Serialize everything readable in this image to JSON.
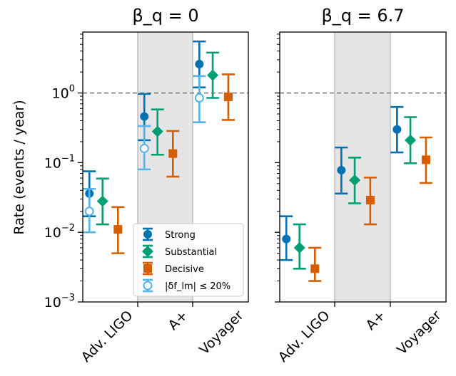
{
  "chart_data": [
    {
      "type": "errorbar",
      "title": "β_q = 0",
      "ylabel": "Rate (events / year)",
      "yscale": "log",
      "ylim": [
        0.001,
        7.5
      ],
      "yticks": [
        {
          "value": 0.001,
          "base": "10",
          "exp": "−3"
        },
        {
          "value": 0.01,
          "base": "10",
          "exp": "−2"
        },
        {
          "value": 0.1,
          "base": "10",
          "exp": "−1"
        },
        {
          "value": 1,
          "base": "10",
          "exp": "0"
        }
      ],
      "reference_line": 1,
      "categories": [
        "Adv. LIGO",
        "A+",
        "Voyager"
      ],
      "shaded_category": "A+",
      "series": [
        {
          "name": "Strong",
          "marker": "circle",
          "color": "#0072b2",
          "offset": -0.38,
          "points": [
            {
              "y": 0.036,
              "low": 0.017,
              "high": 0.075
            },
            {
              "y": 0.46,
              "low": 0.21,
              "high": 0.97
            },
            {
              "y": 2.6,
              "low": 1.2,
              "high": 5.5
            }
          ]
        },
        {
          "name": "Substantial",
          "marker": "diamond",
          "color": "#009e73",
          "offset": -0.14,
          "points": [
            {
              "y": 0.028,
              "low": 0.013,
              "high": 0.059
            },
            {
              "y": 0.28,
              "low": 0.13,
              "high": 0.58
            },
            {
              "y": 1.8,
              "low": 0.85,
              "high": 3.8
            }
          ]
        },
        {
          "name": "Decisive",
          "marker": "square",
          "color": "#d55e00",
          "offset": 0.14,
          "points": [
            {
              "y": 0.011,
              "low": 0.005,
              "high": 0.023
            },
            {
              "y": 0.135,
              "low": 0.063,
              "high": 0.285
            },
            {
              "y": 0.88,
              "low": 0.41,
              "high": 1.85
            }
          ]
        },
        {
          "name": "|δf_lm| ≤ 20%",
          "marker": "open-circle",
          "color": "#56b4e9",
          "offset": -0.38,
          "points": [
            {
              "y": 0.02,
              "low": 0.01,
              "high": 0.042
            },
            {
              "y": 0.16,
              "low": 0.08,
              "high": 0.335
            },
            {
              "y": 0.85,
              "low": 0.38,
              "high": 1.75
            }
          ]
        }
      ],
      "legend": "lower-right"
    },
    {
      "type": "errorbar",
      "title": "β_q = 6.7",
      "yscale": "log",
      "ylim": [
        0.001,
        7.5
      ],
      "reference_line": 1,
      "categories": [
        "Adv. LIGO",
        "A+",
        "Voyager"
      ],
      "shaded_category": "A+",
      "series": [
        {
          "name": "Strong",
          "marker": "circle",
          "color": "#0072b2",
          "offset": -0.38,
          "points": [
            {
              "y": 0.008,
              "low": 0.004,
              "high": 0.017
            },
            {
              "y": 0.078,
              "low": 0.036,
              "high": 0.165
            },
            {
              "y": 0.3,
              "low": 0.14,
              "high": 0.63
            }
          ]
        },
        {
          "name": "Substantial",
          "marker": "diamond",
          "color": "#009e73",
          "offset": -0.14,
          "points": [
            {
              "y": 0.006,
              "low": 0.003,
              "high": 0.013
            },
            {
              "y": 0.056,
              "low": 0.026,
              "high": 0.118
            },
            {
              "y": 0.21,
              "low": 0.098,
              "high": 0.45
            }
          ]
        },
        {
          "name": "Decisive",
          "marker": "square",
          "color": "#d55e00",
          "offset": 0.14,
          "points": [
            {
              "y": 0.003,
              "low": 0.002,
              "high": 0.006
            },
            {
              "y": 0.029,
              "low": 0.013,
              "high": 0.061
            },
            {
              "y": 0.11,
              "low": 0.051,
              "high": 0.23
            }
          ]
        }
      ]
    }
  ]
}
